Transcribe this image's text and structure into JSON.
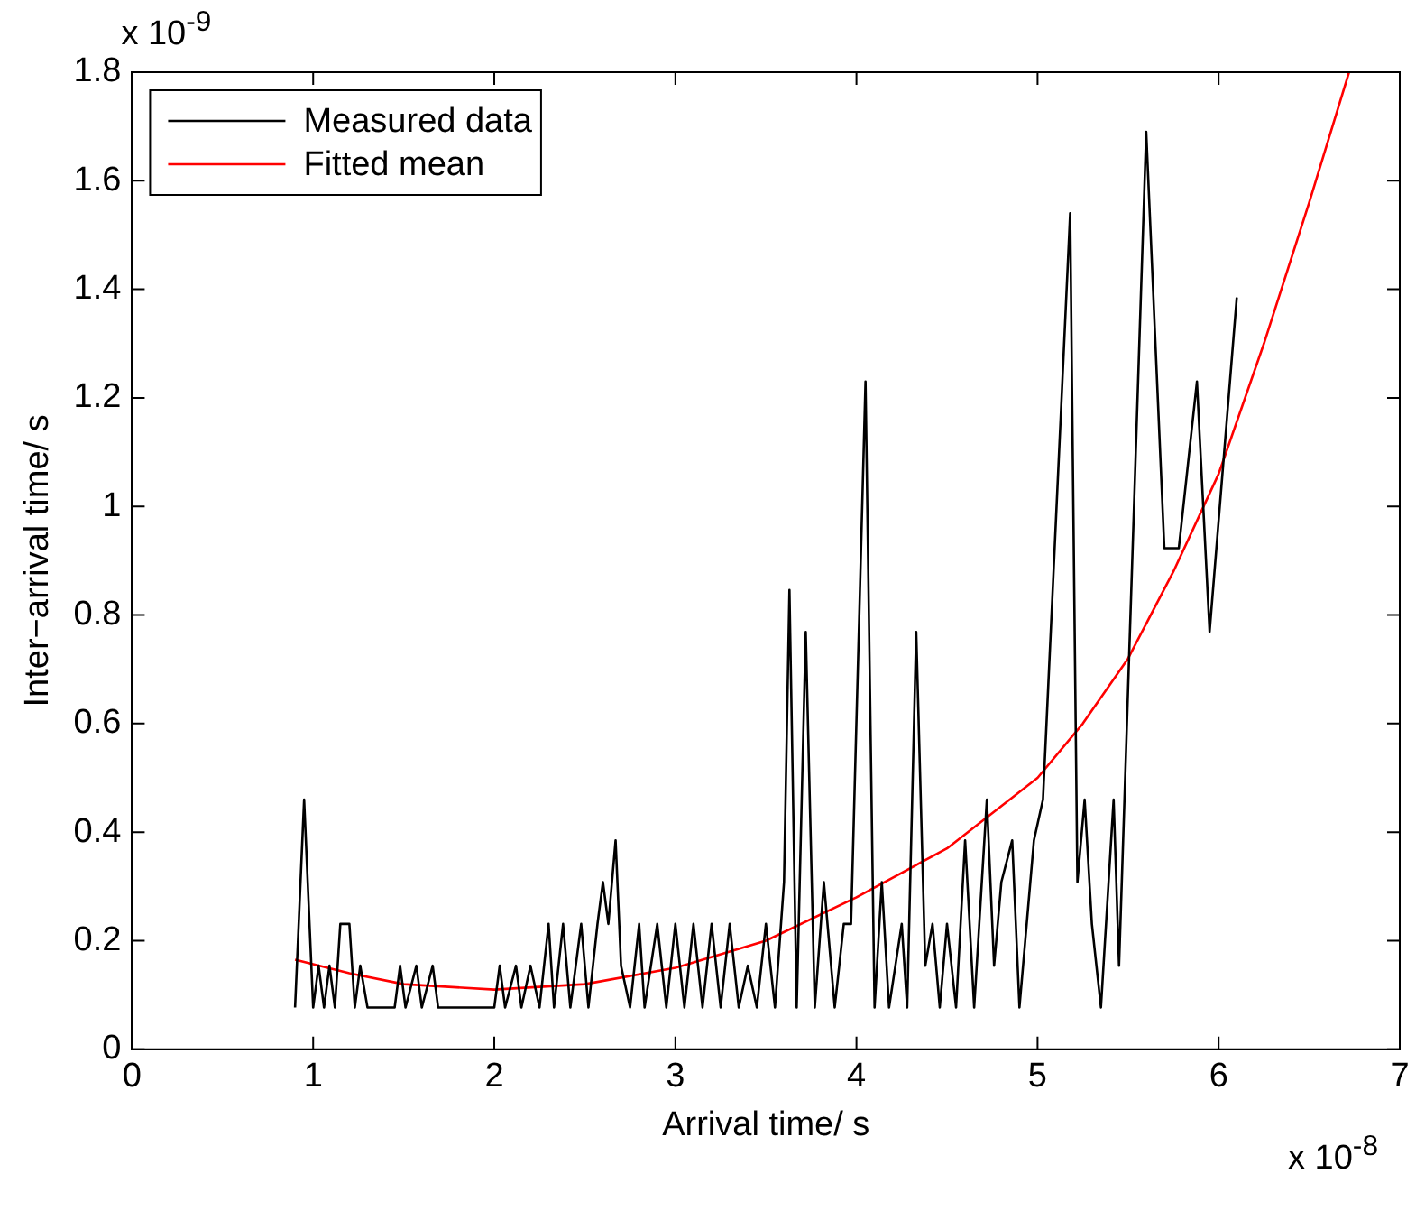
{
  "chart_data": {
    "type": "line",
    "xlabel": "Arrival time/ s",
    "ylabel": "Inter−arrival time/ s",
    "annotations": [
      "x 10$^{-9}$",
      "x 10$^{-8}$"
    ],
    "xlim": [
      0,
      7
    ],
    "xticks": [
      0,
      1,
      2,
      3,
      4,
      5,
      6,
      7
    ],
    "ylim": [
      0,
      1.8
    ],
    "yticks": [
      0,
      0.2,
      0.4,
      0.6,
      0.8,
      1,
      1.2,
      1.4,
      1.6,
      1.8
    ],
    "legend": "top left",
    "marker": "none",
    "series": [
      {
        "name": "Measured data",
        "color": "#000000",
        "x": [
          0.9,
          0.95,
          1.0,
          1.03,
          1.06,
          1.09,
          1.12,
          1.15,
          1.2,
          1.23,
          1.26,
          1.3,
          1.45,
          1.48,
          1.51,
          1.57,
          1.6,
          1.66,
          1.69,
          2.0,
          2.03,
          2.06,
          2.12,
          2.15,
          2.2,
          2.25,
          2.3,
          2.33,
          2.38,
          2.42,
          2.48,
          2.52,
          2.57,
          2.6,
          2.63,
          2.67,
          2.7,
          2.75,
          2.8,
          2.83,
          2.9,
          2.95,
          3.0,
          3.05,
          3.1,
          3.15,
          3.2,
          3.25,
          3.3,
          3.35,
          3.4,
          3.45,
          3.5,
          3.55,
          3.6,
          3.63,
          3.67,
          3.72,
          3.77,
          3.82,
          3.88,
          3.93,
          3.97,
          4.05,
          4.1,
          4.14,
          4.18,
          4.25,
          4.28,
          4.33,
          4.38,
          4.42,
          4.46,
          4.5,
          4.55,
          4.6,
          4.65,
          4.72,
          4.76,
          4.8,
          4.86,
          4.9,
          4.98,
          5.03,
          5.18,
          5.22,
          5.26,
          5.3,
          5.35,
          5.42,
          5.45,
          5.6,
          5.7,
          5.78,
          5.88,
          5.95,
          6.1
        ],
        "values": [
          0.077,
          0.46,
          0.077,
          0.154,
          0.077,
          0.154,
          0.077,
          0.231,
          0.231,
          0.077,
          0.154,
          0.077,
          0.077,
          0.154,
          0.077,
          0.154,
          0.077,
          0.154,
          0.077,
          0.077,
          0.154,
          0.077,
          0.154,
          0.077,
          0.154,
          0.077,
          0.231,
          0.077,
          0.231,
          0.077,
          0.231,
          0.077,
          0.231,
          0.308,
          0.231,
          0.385,
          0.154,
          0.077,
          0.231,
          0.077,
          0.231,
          0.077,
          0.231,
          0.077,
          0.231,
          0.077,
          0.231,
          0.077,
          0.231,
          0.077,
          0.154,
          0.077,
          0.231,
          0.077,
          0.308,
          0.846,
          0.077,
          0.769,
          0.077,
          0.308,
          0.077,
          0.231,
          0.231,
          1.23,
          0.077,
          0.308,
          0.077,
          0.231,
          0.077,
          0.769,
          0.154,
          0.231,
          0.077,
          0.231,
          0.077,
          0.385,
          0.077,
          0.46,
          0.154,
          0.308,
          0.385,
          0.077,
          0.385,
          0.46,
          1.54,
          0.308,
          0.46,
          0.231,
          0.077,
          0.46,
          0.154,
          1.69,
          0.923,
          0.923,
          1.23,
          0.769,
          1.385
        ]
      },
      {
        "name": "Fitted mean",
        "color": "#ff0000",
        "x": [
          0.9,
          1.2,
          1.5,
          2.0,
          2.5,
          3.0,
          3.5,
          4.0,
          4.5,
          5.0,
          5.25,
          5.5,
          5.75,
          6.0,
          6.25,
          6.5,
          6.72
        ],
        "values": [
          0.165,
          0.14,
          0.12,
          0.11,
          0.12,
          0.15,
          0.2,
          0.28,
          0.37,
          0.5,
          0.6,
          0.72,
          0.88,
          1.06,
          1.3,
          1.56,
          1.8
        ]
      }
    ]
  }
}
